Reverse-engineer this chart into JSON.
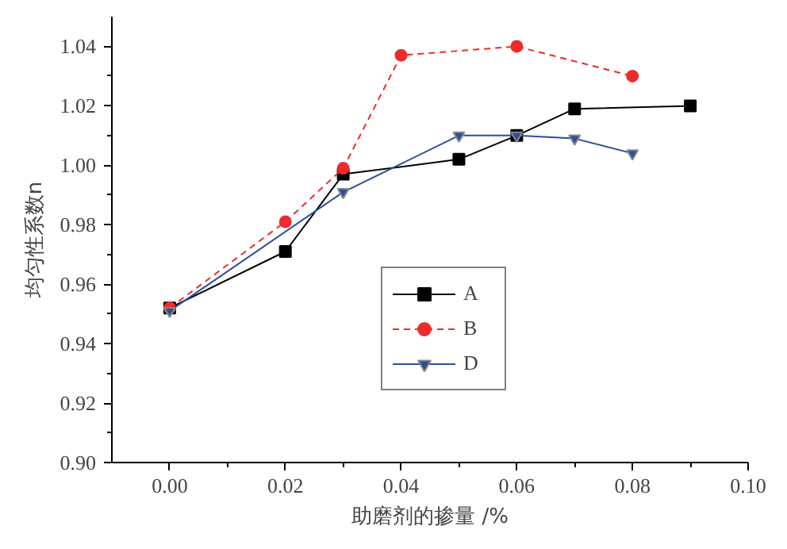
{
  "chart_data": {
    "type": "line",
    "xlabel": "助磨剂的掺量 /%",
    "ylabel": "均匀性系数n",
    "xlim": [
      -0.01,
      0.1
    ],
    "ylim": [
      0.9,
      1.05
    ],
    "xticks": [
      {
        "value": 0,
        "label": "0.00"
      },
      {
        "value": 0.02,
        "label": "0.02"
      },
      {
        "value": 0.04,
        "label": "0.04"
      },
      {
        "value": 0.06,
        "label": "0.06"
      },
      {
        "value": 0.08,
        "label": "0.08"
      },
      {
        "value": 0.1,
        "label": "0.10"
      }
    ],
    "yticks": [
      {
        "value": 0.9,
        "label": "0.90"
      },
      {
        "value": 0.92,
        "label": "0.92"
      },
      {
        "value": 0.94,
        "label": "0.94"
      },
      {
        "value": 0.96,
        "label": "0.96"
      },
      {
        "value": 0.98,
        "label": "0.98"
      },
      {
        "value": 1.0,
        "label": "1.00"
      },
      {
        "value": 1.02,
        "label": "1.02"
      },
      {
        "value": 1.04,
        "label": "1.04"
      }
    ],
    "grid": false,
    "legend": "center",
    "series": [
      {
        "name": "A",
        "color": "#000000",
        "marker": "square",
        "line_style": "solid",
        "x": [
          0,
          0.02,
          0.03,
          0.05,
          0.06,
          0.07,
          0.09
        ],
        "values": [
          0.952,
          0.971,
          0.997,
          1.002,
          1.01,
          1.019,
          1.02
        ]
      },
      {
        "name": "B",
        "color": "#ee2b2b",
        "marker": "circle",
        "line_style": "dashed",
        "x": [
          0,
          0.02,
          0.03,
          0.04,
          0.06,
          0.08
        ],
        "values": [
          0.952,
          0.981,
          0.999,
          1.037,
          1.04,
          1.03
        ]
      },
      {
        "name": "D",
        "color": "#2a4f9a",
        "marker": "triangle",
        "line_style": "solid",
        "x": [
          0,
          0.03,
          0.05,
          0.06,
          0.07,
          0.08
        ],
        "values": [
          0.951,
          0.991,
          1.01,
          1.01,
          1.009,
          1.004
        ]
      }
    ]
  }
}
